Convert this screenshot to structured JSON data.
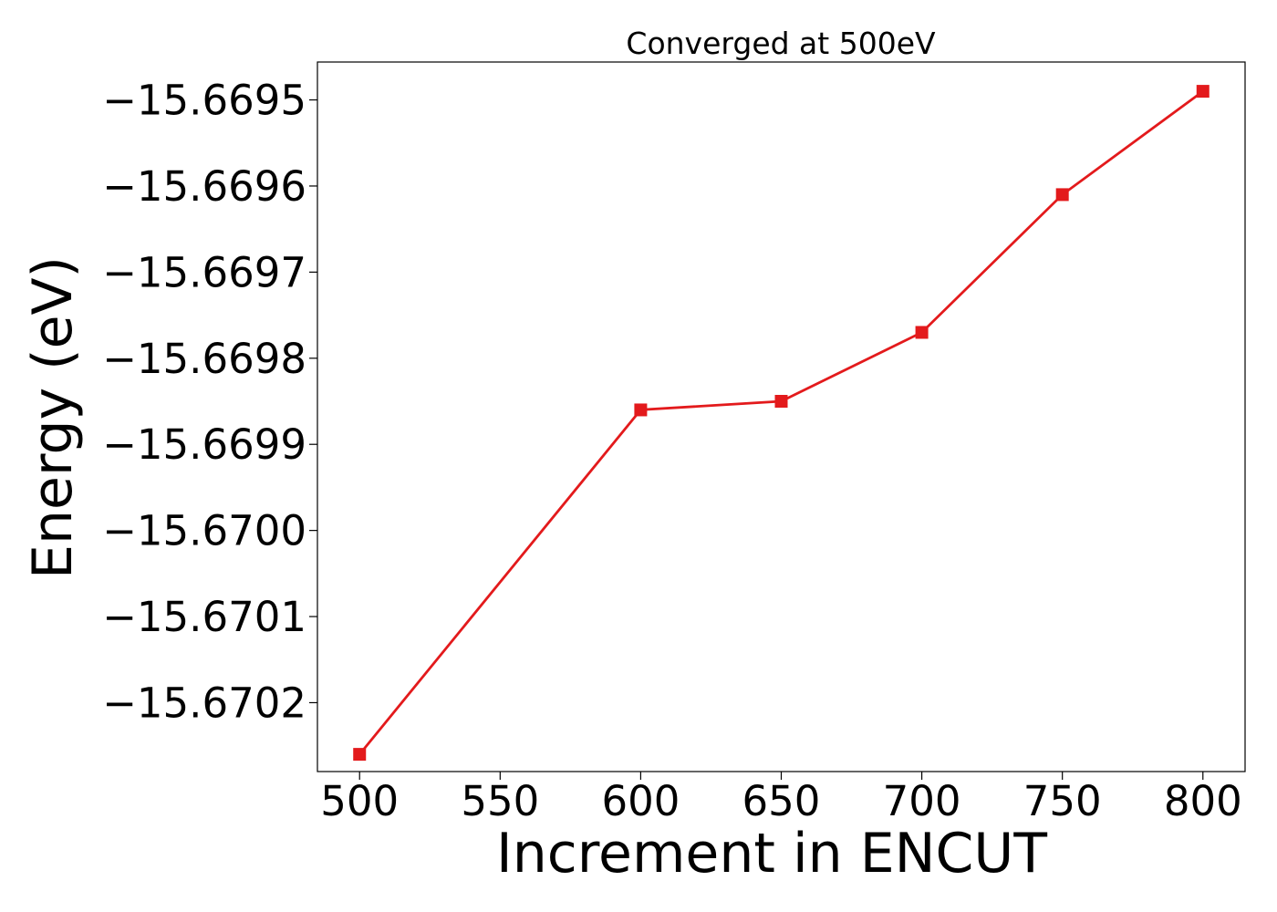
{
  "chart_data": {
    "type": "line",
    "title": "Converged at 500eV",
    "xlabel": "Increment in ENCUT",
    "ylabel": "Energy (eV)",
    "x": [
      500,
      600,
      650,
      700,
      750,
      800
    ],
    "series": [
      {
        "values": [
          -15.67026,
          -15.66986,
          -15.66985,
          -15.66977,
          -15.66961,
          -15.66949
        ],
        "color": "#e31a1c",
        "marker": "square"
      }
    ],
    "xticks": [
      500,
      550,
      600,
      650,
      700,
      750,
      800
    ],
    "xtick_labels": [
      "500",
      "550",
      "600",
      "650",
      "700",
      "750",
      "800"
    ],
    "yticks": [
      -15.6695,
      -15.6696,
      -15.6697,
      -15.6698,
      -15.6699,
      -15.67,
      -15.6701,
      -15.6702
    ],
    "ytick_labels": [
      "−15.6695",
      "−15.6696",
      "−15.6697",
      "−15.6698",
      "−15.6699",
      "−15.6700",
      "−15.6701",
      "−15.6702"
    ],
    "xlim": [
      485,
      815
    ],
    "ylim": [
      -15.67028,
      -15.669456
    ],
    "grid": false,
    "legend": "none"
  }
}
